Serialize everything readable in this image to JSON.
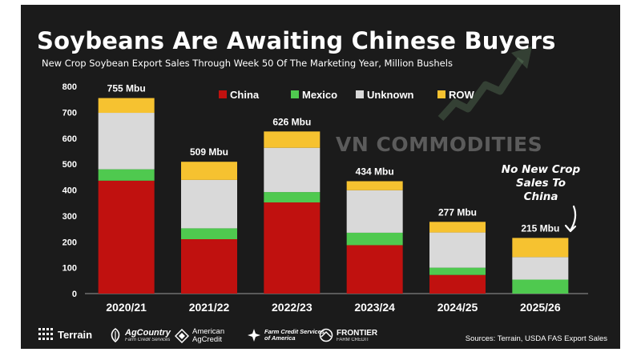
{
  "title": "Soybeans Are Awaiting Chinese Buyers",
  "subtitle": "New Crop Soybean Export Sales Through Week 50 Of The Marketing Year, Million Bushels",
  "watermark": "VN COMMODITIES",
  "annotation": [
    "No New Crop",
    "Sales To",
    "China"
  ],
  "source": "Sources: Terrain, USDA FAS Export Sales",
  "logos": {
    "terrain": "Terrain",
    "agcountry": "AgCountry",
    "agcountry_sub": "Farm Credit Services",
    "american_agcredit": [
      "American",
      "AgCredit"
    ],
    "fcs_america": [
      "Farm Credit Services",
      "of America"
    ],
    "frontier": "FRONTIER",
    "frontier_sub": "FARM CREDIT"
  },
  "colors": {
    "China": "#c0110f",
    "Mexico": "#4fc94f",
    "Unknown": "#d9d9d9",
    "ROW": "#f6c230",
    "background": "#1b1b1b",
    "text": "#ffffff"
  },
  "chart_data": {
    "type": "bar",
    "stacked": true,
    "categories": [
      "2020/21",
      "2021/22",
      "2022/23",
      "2023/24",
      "2024/25",
      "2025/26"
    ],
    "series": [
      {
        "name": "China",
        "values": [
          436,
          210,
          352,
          187,
          72,
          0
        ]
      },
      {
        "name": "Mexico",
        "values": [
          44,
          42,
          40,
          48,
          28,
          54
        ]
      },
      {
        "name": "Unknown",
        "values": [
          218,
          187,
          171,
          164,
          136,
          87
        ]
      },
      {
        "name": "ROW",
        "values": [
          57,
          70,
          63,
          35,
          41,
          74
        ]
      }
    ],
    "totals": [
      755,
      509,
      626,
      434,
      277,
      215
    ],
    "total_labels": [
      "755 Mbu",
      "509 Mbu",
      "626 Mbu",
      "434 Mbu",
      "277 Mbu",
      "215 Mbu"
    ],
    "ylim": [
      0,
      800
    ],
    "yticks": [
      0,
      100,
      200,
      300,
      400,
      500,
      600,
      700,
      800
    ],
    "legend_position": "top-center",
    "grid": false,
    "xlabel": "",
    "ylabel": ""
  }
}
